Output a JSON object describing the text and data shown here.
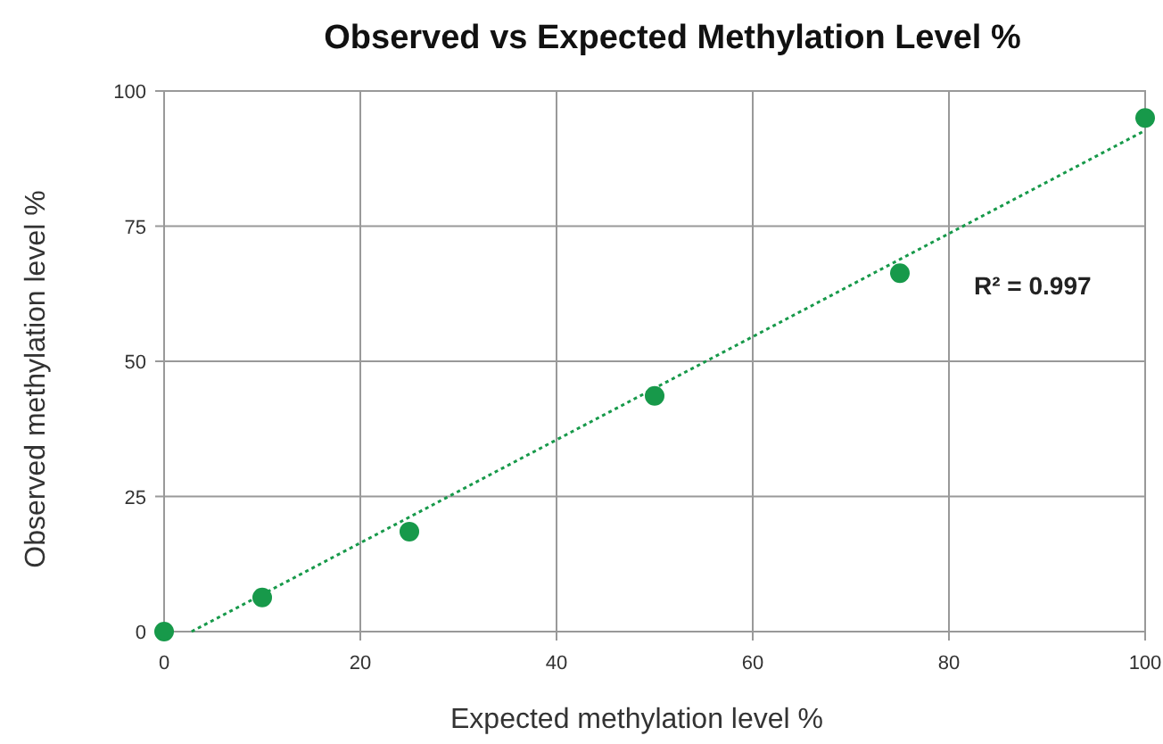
{
  "chart_data": {
    "type": "scatter",
    "title": "Observed vs Expected Methylation Level %",
    "xlabel": "Expected methylation level %",
    "ylabel": "Observed methylation level %",
    "x": [
      0,
      10,
      25,
      50,
      75,
      100
    ],
    "series": [
      {
        "color": "#17994a",
        "values": [
          0,
          6.3,
          18.5,
          43.6,
          66.3,
          95
        ]
      },
      {
        "type": "line",
        "color": "#17994a",
        "x": [
          2.8,
          100
        ],
        "values": [
          0,
          92.7
        ],
        "line_style": "dotted",
        "marker": "none"
      }
    ],
    "xlim": [
      0,
      100
    ],
    "xticks": [
      0,
      20,
      40,
      60,
      80,
      100
    ],
    "ylim": [
      0,
      100
    ],
    "yticks": [
      0,
      25,
      50,
      75,
      100
    ],
    "grid": true,
    "marker": "circle",
    "annotations": [
      "R² = 0.997"
    ]
  }
}
